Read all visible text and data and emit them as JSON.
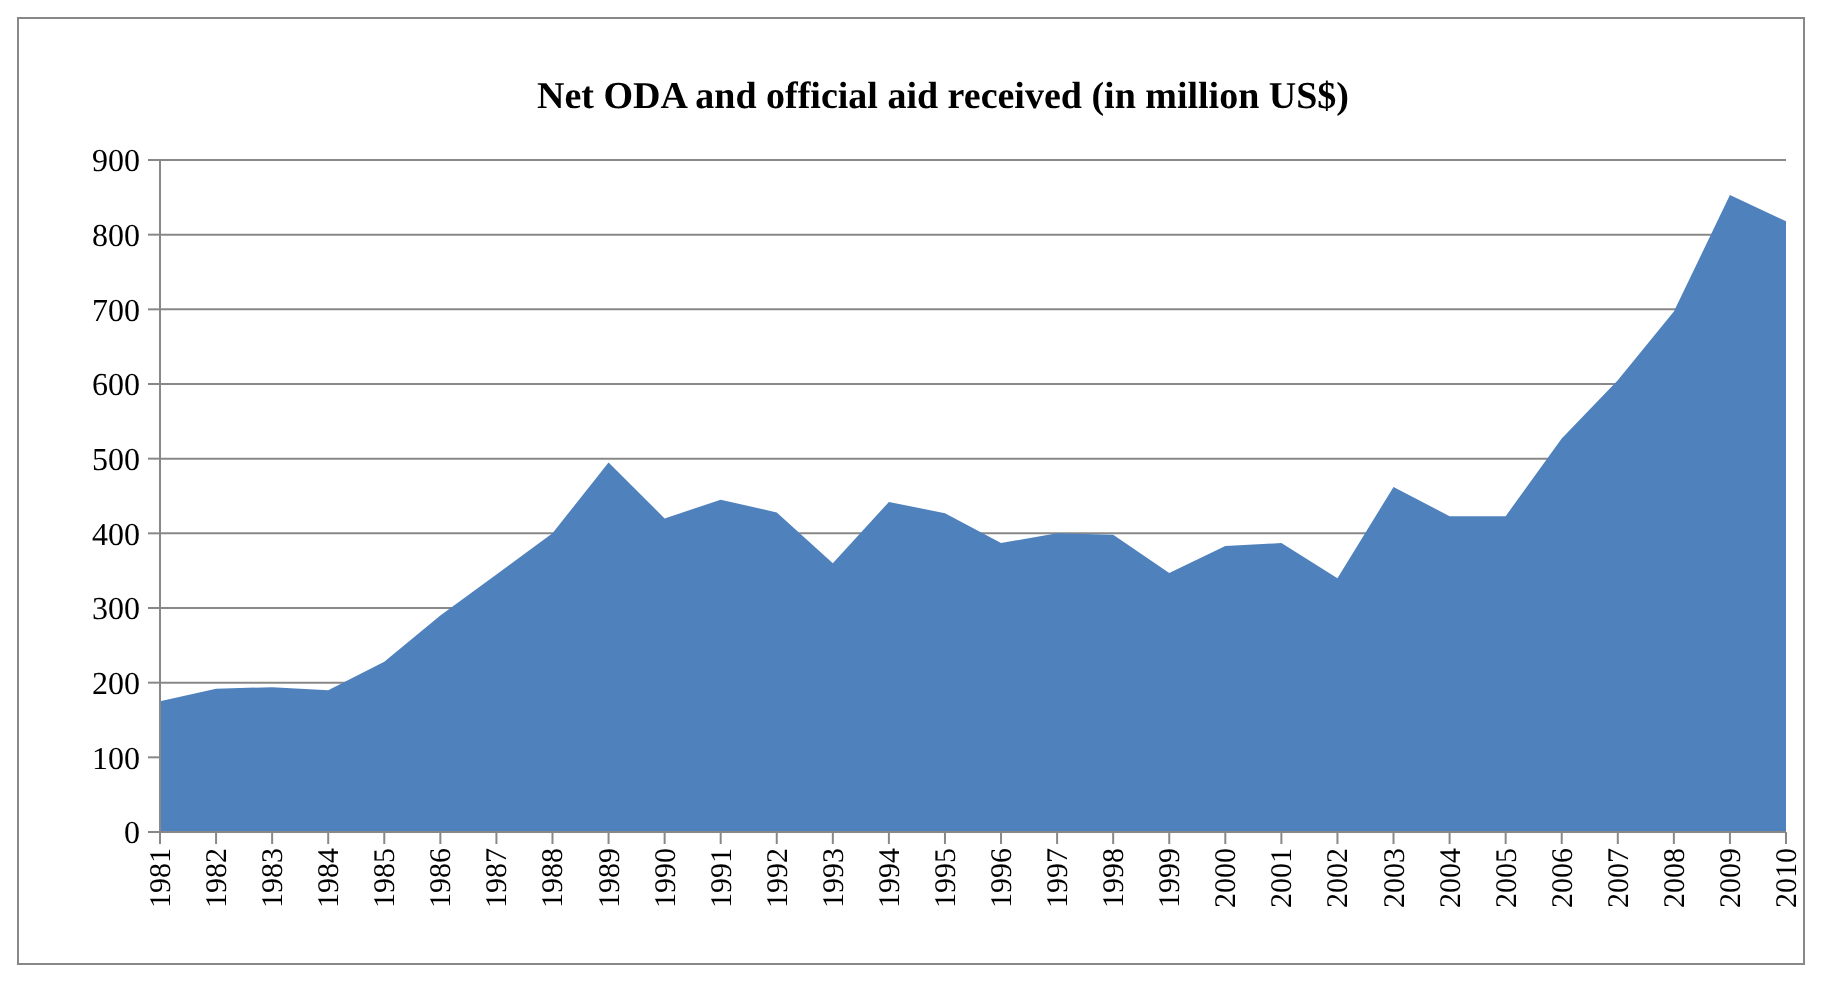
{
  "chart_data": {
    "type": "area",
    "title": "Net ODA and official aid received (in million US$)",
    "categories": [
      "1981",
      "1982",
      "1983",
      "1984",
      "1985",
      "1986",
      "1987",
      "1988",
      "1989",
      "1990",
      "1991",
      "1992",
      "1993",
      "1994",
      "1995",
      "1996",
      "1997",
      "1998",
      "1999",
      "2000",
      "2001",
      "2002",
      "2003",
      "2004",
      "2005",
      "2006",
      "2007",
      "2008",
      "2009",
      "2010"
    ],
    "series": [
      {
        "color": "#4f81bd",
        "values": [
          175,
          192,
          194,
          190,
          228,
          290,
          345,
          400,
          495,
          420,
          445,
          428,
          360,
          442,
          427,
          387,
          400,
          398,
          347,
          383,
          387,
          340,
          462,
          423,
          423,
          527,
          605,
          697,
          853,
          818
        ]
      }
    ],
    "ylim": [
      0,
      900
    ],
    "yticks": [
      0,
      100,
      200,
      300,
      400,
      500,
      600,
      700,
      800,
      900
    ],
    "grid": "y"
  }
}
